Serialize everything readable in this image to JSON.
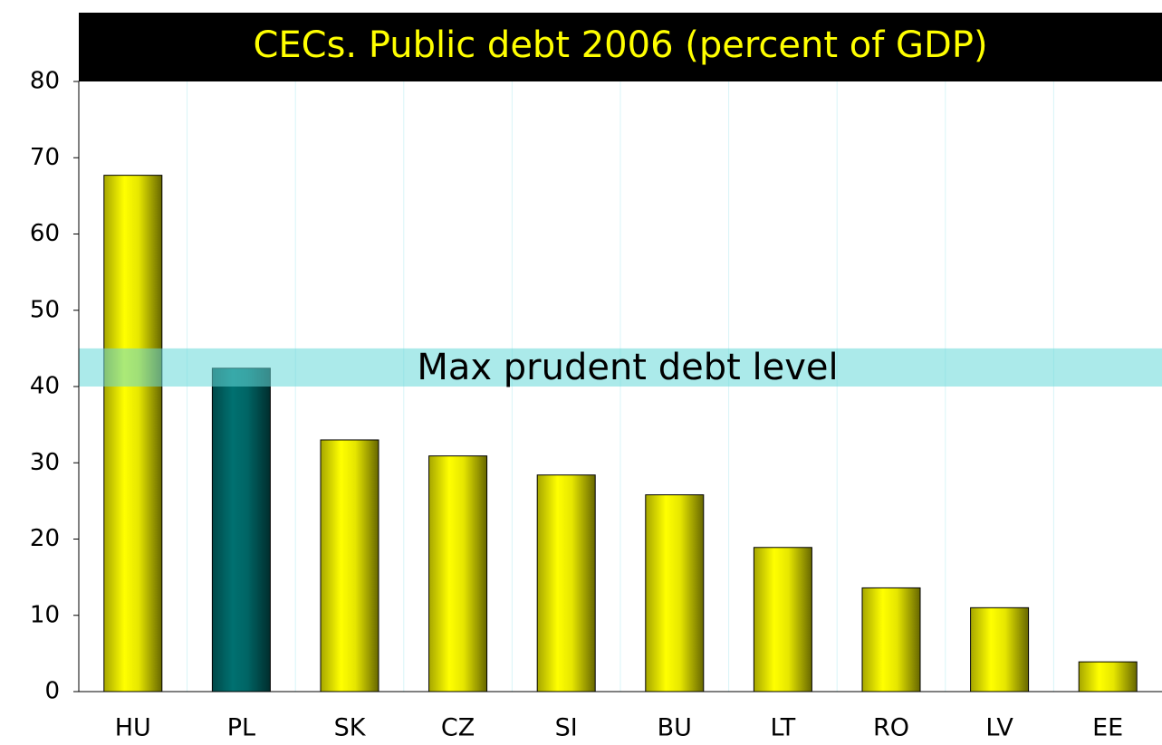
{
  "chart_data": {
    "type": "bar",
    "title": "CECs. Public debt 2006 (percent of GDP)",
    "categories": [
      "HU",
      "PL",
      "SK",
      "CZ",
      "SI",
      "BU",
      "LT",
      "RO",
      "LV",
      "EE"
    ],
    "values": [
      67.7,
      42.4,
      33.0,
      30.9,
      28.4,
      25.8,
      18.9,
      13.6,
      11.0,
      3.9
    ],
    "colors": [
      "#ffff00",
      "#007070",
      "#ffff00",
      "#ffff00",
      "#ffff00",
      "#ffff00",
      "#ffff00",
      "#ffff00",
      "#ffff00",
      "#ffff00"
    ],
    "ylim": [
      0,
      80
    ],
    "yticks": [
      0,
      10,
      20,
      30,
      40,
      50,
      60,
      70,
      80
    ],
    "grid": true,
    "band": {
      "label": "Max prudent debt level",
      "range": [
        40,
        45
      ],
      "color": "#66d9d9"
    }
  }
}
